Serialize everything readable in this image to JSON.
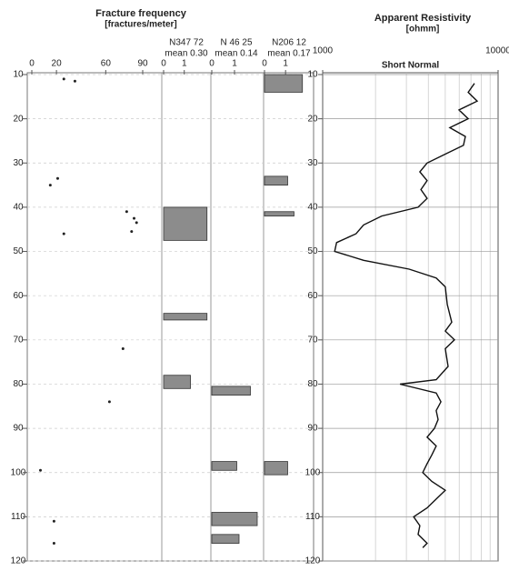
{
  "chart_data": [
    {
      "type": "scatter",
      "title": "Fracture frequency",
      "subtitle": "[fractures/meter]",
      "xlim": [
        0,
        90
      ],
      "xticks": [
        0,
        20,
        60,
        90
      ],
      "ylim": [
        10,
        120
      ],
      "yticks": [
        10,
        20,
        30,
        40,
        50,
        60,
        70,
        80,
        90,
        100,
        110,
        120
      ],
      "y_reversed": true,
      "grid": true,
      "color": "#222222",
      "values": [
        26,
        35,
        21,
        15,
        77,
        83,
        81,
        85,
        26,
        74,
        63,
        7,
        18,
        18
      ],
      "depth": [
        11,
        11.5,
        33.5,
        35,
        41,
        42.5,
        45.5,
        43.5,
        46,
        72,
        84,
        99.5,
        111,
        116
      ]
    },
    {
      "type": "bar",
      "title": "N347 72",
      "subtitle": "mean 0.30",
      "xlim": [
        0,
        2.2
      ],
      "xticks": [
        0,
        1
      ],
      "ylim": [
        10,
        120
      ],
      "y_reversed": true,
      "color": "#8c8c8c",
      "depth_top": [
        40,
        64,
        78
      ],
      "depth_bottom": [
        47.5,
        65.5,
        81
      ],
      "values": [
        2.1,
        2.1,
        1.3
      ]
    },
    {
      "type": "bar",
      "title": "N 46 25",
      "subtitle": "mean 0.14",
      "xlim": [
        0,
        2.2
      ],
      "xticks": [
        0,
        1
      ],
      "ylim": [
        10,
        120
      ],
      "y_reversed": true,
      "color": "#8c8c8c",
      "depth_top": [
        80.5,
        97.5,
        109,
        114
      ],
      "depth_bottom": [
        82.5,
        99.5,
        112,
        116
      ],
      "values": [
        1.7,
        1.1,
        2.0,
        1.2
      ]
    },
    {
      "type": "bar",
      "title": "N206 12",
      "subtitle": "mean 0.17",
      "xlim": [
        0,
        2.2
      ],
      "xticks": [
        0,
        1
      ],
      "ylim": [
        10,
        120
      ],
      "y_reversed": true,
      "color": "#8c8c8c",
      "depth_top": [
        10,
        33,
        41,
        97.5
      ],
      "depth_bottom": [
        14,
        35,
        42,
        100.5
      ],
      "values": [
        1.8,
        1.1,
        1.4,
        1.1
      ]
    },
    {
      "type": "line",
      "title": "Apparent Resistivity",
      "subtitle": "[ohmm]",
      "log_x": true,
      "xlim": [
        1000,
        10000
      ],
      "xticks": [
        1000,
        10000
      ],
      "x_minor_ticks": [
        2000,
        3000,
        4000,
        5000,
        6000,
        7000,
        8000,
        9000
      ],
      "ylim": [
        10,
        120
      ],
      "yticks": [
        10,
        20,
        30,
        40,
        50,
        60,
        70,
        80,
        90,
        100,
        110,
        120
      ],
      "y_reversed": true,
      "grid": true,
      "series": [
        {
          "name": "Short Normal",
          "color": "#111111",
          "depth": [
            12,
            14,
            16,
            18,
            20,
            22,
            24,
            26,
            28,
            30,
            32,
            34,
            36,
            38,
            40,
            42,
            44,
            46,
            48,
            50,
            52,
            54,
            56,
            58,
            62,
            66,
            68,
            70,
            72,
            76,
            79,
            80,
            82,
            84,
            86,
            88,
            90,
            92,
            94,
            96,
            98,
            100,
            102,
            104,
            106,
            108,
            110,
            112,
            114,
            116,
            117
          ],
          "values": [
            7330,
            6750,
            7600,
            5990,
            6750,
            5310,
            6510,
            6350,
            5000,
            3940,
            3580,
            3940,
            3630,
            3940,
            3500,
            2170,
            1710,
            1550,
            1200,
            1170,
            1710,
            3110,
            4440,
            5000,
            5130,
            5440,
            5000,
            5640,
            5000,
            5190,
            4440,
            2760,
            4440,
            4720,
            4440,
            4550,
            4340,
            3940,
            4440,
            4190,
            3940,
            3720,
            4190,
            5000,
            4440,
            3940,
            3300,
            3580,
            3500,
            3940,
            3720
          ]
        }
      ]
    }
  ]
}
